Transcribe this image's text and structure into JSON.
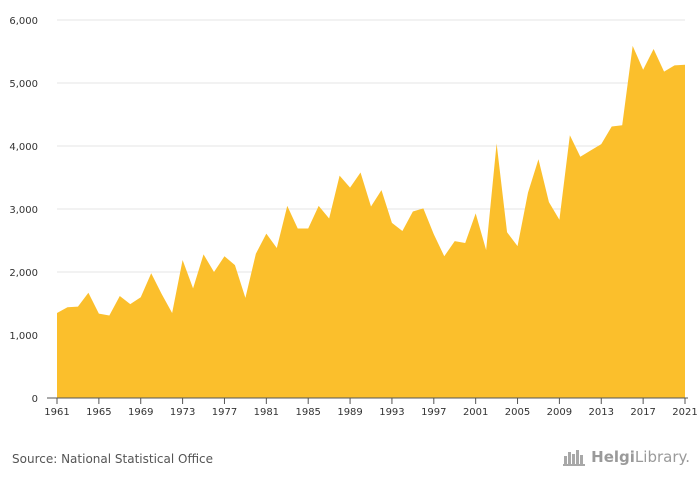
{
  "chart_data": {
    "type": "area",
    "title": "",
    "xlabel": "",
    "ylabel": "",
    "x": [
      1961,
      1962,
      1963,
      1964,
      1965,
      1966,
      1967,
      1968,
      1969,
      1970,
      1971,
      1972,
      1973,
      1974,
      1975,
      1976,
      1977,
      1978,
      1979,
      1980,
      1981,
      1982,
      1983,
      1984,
      1985,
      1986,
      1987,
      1988,
      1989,
      1990,
      1991,
      1992,
      1993,
      1994,
      1995,
      1996,
      1997,
      1998,
      1999,
      2000,
      2001,
      2002,
      2003,
      2004,
      2005,
      2006,
      2007,
      2008,
      2009,
      2010,
      2011,
      2012,
      2013,
      2014,
      2015,
      2016,
      2017,
      2018,
      2019,
      2020,
      2021
    ],
    "values": [
      1350,
      1440,
      1450,
      1670,
      1340,
      1310,
      1620,
      1490,
      1600,
      1980,
      1650,
      1350,
      2190,
      1740,
      2280,
      2000,
      2250,
      2110,
      1590,
      2290,
      2610,
      2380,
      3050,
      2690,
      2690,
      3050,
      2850,
      3530,
      3340,
      3580,
      3040,
      3300,
      2780,
      2650,
      2960,
      3010,
      2600,
      2250,
      2490,
      2460,
      2930,
      2350,
      4040,
      2630,
      2410,
      3260,
      3790,
      3110,
      2830,
      4170,
      3830,
      3930,
      4030,
      4310,
      4330,
      5590,
      5210,
      5540,
      5180,
      5280,
      5290
    ],
    "x_ticks": [
      "1961",
      "1965",
      "1969",
      "1973",
      "1977",
      "1981",
      "1985",
      "1989",
      "1993",
      "1997",
      "2001",
      "2005",
      "2009",
      "2013",
      "2017",
      "2021"
    ],
    "y_ticks": [
      "0",
      "1,000",
      "2,000",
      "3,000",
      "4,000",
      "5,000",
      "6,000"
    ],
    "ylim": [
      0,
      6000
    ],
    "xlim": [
      1961,
      2021
    ],
    "grid": true,
    "fill_color": "#FBBF2C"
  },
  "footer": {
    "source": "Source: National Statistical Office",
    "brand_name": "Helgi",
    "brand_suffix": "Library."
  }
}
